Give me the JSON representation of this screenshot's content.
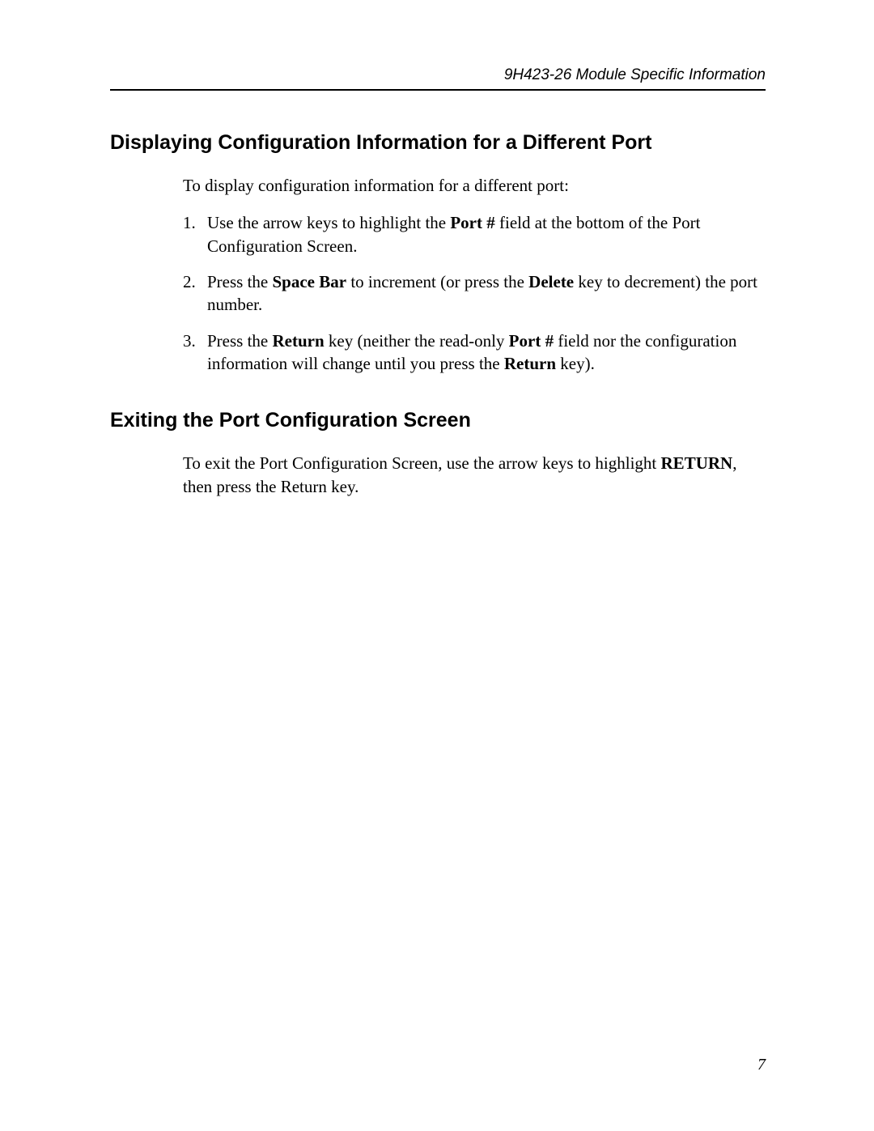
{
  "header": {
    "running_title": "9H423-26 Module Specific Information"
  },
  "section1": {
    "heading": "Displaying Configuration Information for a Different Port",
    "intro": "To display configuration information for a different port:",
    "steps": {
      "s1": {
        "num": "1.",
        "pre": "Use the arrow keys to highlight the ",
        "b1": "Port #",
        "post": " field at the bottom of the Port Configuration Screen."
      },
      "s2": {
        "num": "2.",
        "pre": "Press the ",
        "b1": "Space Bar",
        "mid": " to increment (or press the ",
        "b2": "Delete",
        "post": " key to decrement) the port number."
      },
      "s3": {
        "num": "3.",
        "pre": "Press the ",
        "b1": "Return",
        "mid1": " key (neither the read-only ",
        "b2": "Port #",
        "mid2": " field nor the configuration information will change until you press the ",
        "b3": "Return",
        "post": " key)."
      }
    }
  },
  "section2": {
    "heading": "Exiting the Port Configuration Screen",
    "para": {
      "pre": "To exit the Port Configuration Screen, use the arrow keys to highlight ",
      "b1": "RETURN",
      "post": ", then press the Return key."
    }
  },
  "page_number": "7"
}
